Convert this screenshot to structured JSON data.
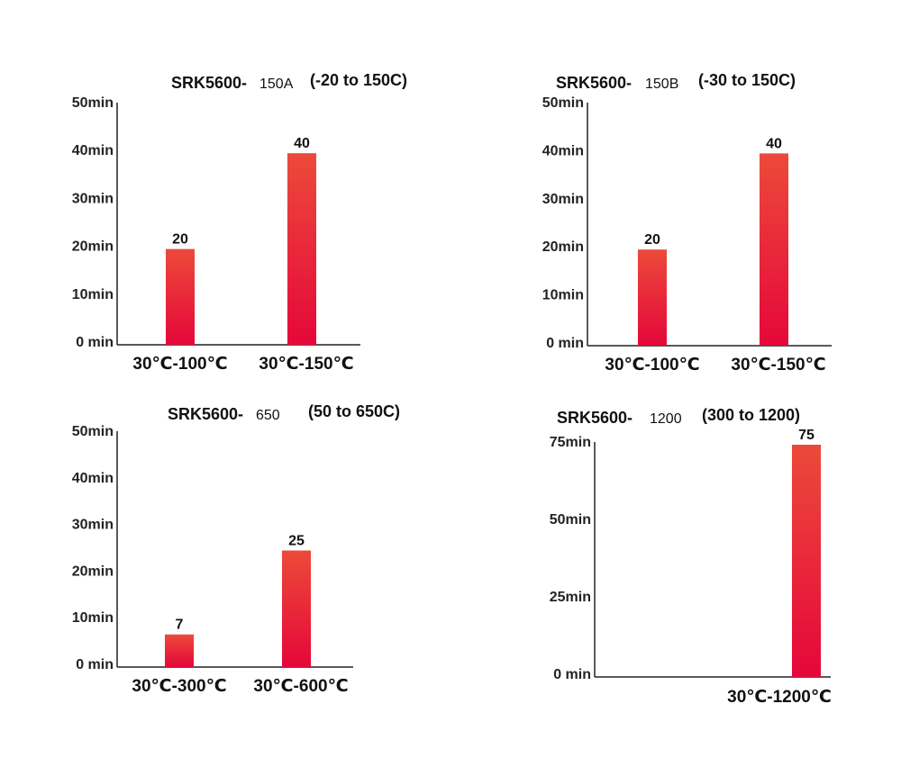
{
  "chart_data": [
    {
      "type": "bar",
      "title": "SRK5600-",
      "model": "150A",
      "range": "(-20 to 150C)",
      "categories": [
        "30℃-100℃",
        "30℃-150℃"
      ],
      "values": [
        20,
        40
      ],
      "ylim": [
        0,
        50
      ],
      "yticks": [
        0,
        10,
        20,
        30,
        40,
        50
      ],
      "ytick_labels": [
        "0  min",
        "10min",
        "20min",
        "30min",
        "40min",
        "50min"
      ],
      "color": "#e8203a"
    },
    {
      "type": "bar",
      "title": "SRK5600-",
      "model": "150B",
      "range": "(-30 to 150C)",
      "categories": [
        "30℃-100℃",
        "30℃-150℃"
      ],
      "values": [
        20,
        40
      ],
      "ylim": [
        0,
        50
      ],
      "yticks": [
        0,
        10,
        20,
        30,
        40,
        50
      ],
      "ytick_labels": [
        "0  min",
        "10min",
        "20min",
        "30min",
        "40min",
        "50min"
      ],
      "color": "#e8203a"
    },
    {
      "type": "bar",
      "title": "SRK5600-",
      "model": "650",
      "range": "(50 to 650C)",
      "categories": [
        "30℃-300℃",
        "30℃-600℃"
      ],
      "values": [
        7,
        25
      ],
      "ylim": [
        0,
        50
      ],
      "yticks": [
        0,
        10,
        20,
        30,
        40,
        50
      ],
      "ytick_labels": [
        "0  min",
        "10min",
        "20min",
        "30min",
        "40min",
        "50min"
      ],
      "color": "#e8203a"
    },
    {
      "type": "bar",
      "title": "SRK5600-",
      "model": "1200",
      "range": "(300 to 1200)",
      "categories": [
        "30℃-1200℃"
      ],
      "values": [
        75
      ],
      "ylim": [
        0,
        75
      ],
      "yticks": [
        0,
        25,
        50,
        75
      ],
      "ytick_labels": [
        "0  min",
        "25min",
        "50min",
        "75min"
      ],
      "color": "#e8203a"
    }
  ]
}
